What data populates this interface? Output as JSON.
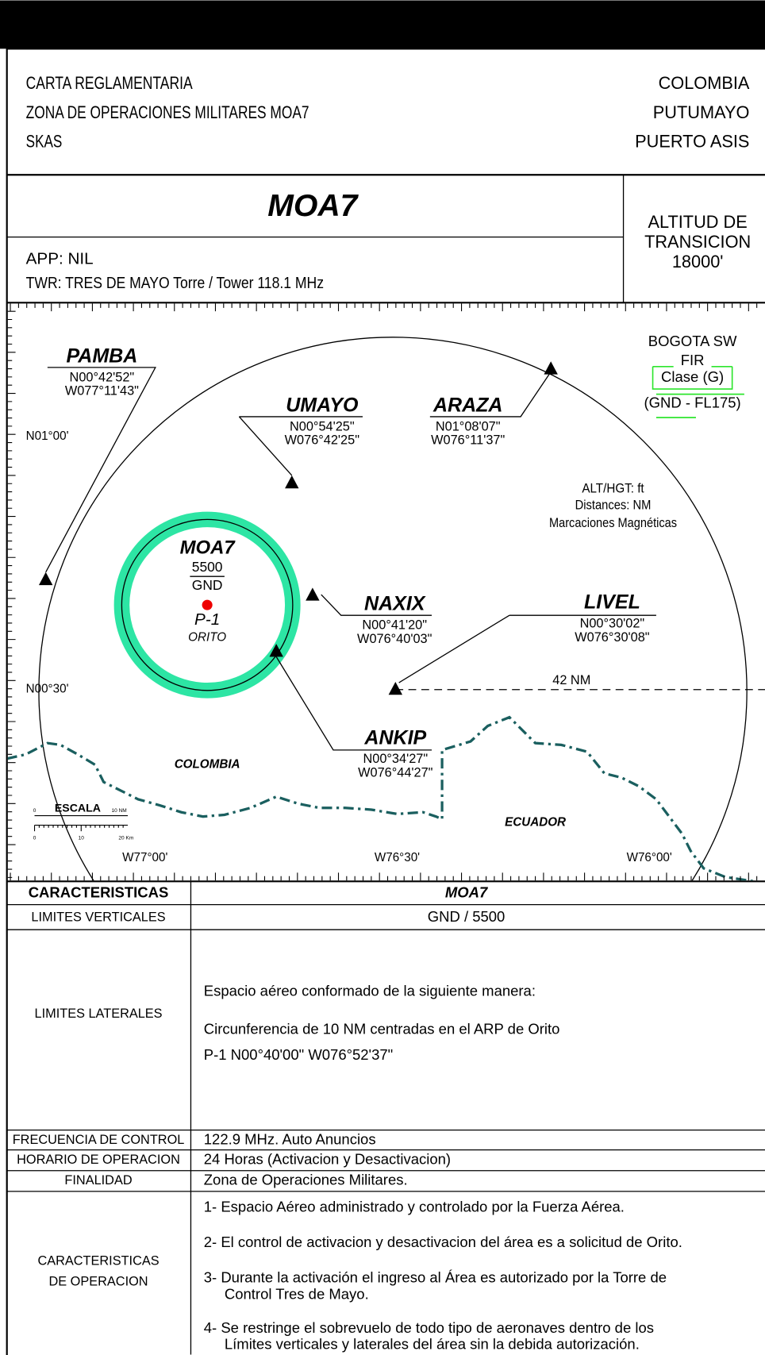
{
  "header": {
    "title": "MOA",
    "left_lines": [
      "CARTA REGLAMENTARIA",
      "ZONA DE OPERACIONES MILITARES MOA7",
      "SKAS"
    ],
    "right_lines": [
      "COLOMBIA",
      "PUTUMAYO",
      "PUERTO ASIS"
    ]
  },
  "zone": {
    "name": "MOA7",
    "app": "APP: NIL",
    "twr": "TWR: TRES DE MAYO Torre / Tower 118.1 MHz",
    "transition": [
      "ALTITUD DE",
      "TRANSICION",
      "18000'"
    ]
  },
  "map": {
    "waypoints": [
      {
        "name": "PAMBA",
        "lat": "N00°42'52\"",
        "lon": "W077°11'43\""
      },
      {
        "name": "UMAYO",
        "lat": "N00°54'25\"",
        "lon": "W076°42'25\""
      },
      {
        "name": "ARAZA",
        "lat": "N01°08'07\"",
        "lon": "W076°11'37\""
      },
      {
        "name": "NAXIX",
        "lat": "N00°41'20\"",
        "lon": "W076°40'03\""
      },
      {
        "name": "LIVEL",
        "lat": "N00°30'02\"",
        "lon": "W076°30'08\""
      },
      {
        "name": "ANKIP",
        "lat": "N00°34'27\"",
        "lon": "W076°44'27\""
      }
    ],
    "lat_labels": [
      "N01°00'",
      "N00°30'"
    ],
    "lon_labels": [
      "W77°00'",
      "W76°30'",
      "W76°00'"
    ],
    "countries": [
      "COLOMBIA",
      "ECUADOR"
    ],
    "airspace": [
      "BOGOTA SW",
      "FIR",
      "Clase (G)",
      "(GND - FL175)"
    ],
    "notes": [
      "ALT/HGT: ft",
      "Distances: NM",
      "Marcaciones Magnéticas"
    ],
    "area": {
      "name": "MOA7",
      "upper": "5500",
      "lower": "GND",
      "id": "P-1",
      "place": "ORITO"
    },
    "radius_label": "42 NM",
    "scale": {
      "title": "ESCALA",
      "nm_start": "0",
      "nm_end": "10 NM",
      "km_start": "0",
      "km_mid": "10",
      "km_end": "20 Km"
    }
  },
  "table": {
    "header": [
      "CARACTERISTICAS",
      "MOA7"
    ],
    "rows": [
      {
        "label": [
          "LIMITES VERTICALES"
        ],
        "lines": [
          "GND / 5500"
        ]
      },
      {
        "label": [
          "LIMITES LATERALES"
        ],
        "lines": [
          "Espacio aéreo conformado de la siguiente manera:",
          "Circunferencia de 10 NM centradas en el ARP de Orito",
          "P-1  N00°40'00\"  W076°52'37\""
        ]
      },
      {
        "label": [
          "FRECUENCIA DE CONTROL"
        ],
        "lines": [
          "122.9 MHz. Auto Anuncios"
        ]
      },
      {
        "label": [
          "HORARIO DE OPERACION"
        ],
        "lines": [
          "24 Horas (Activacion y Desactivacion)"
        ]
      },
      {
        "label": [
          "FINALIDAD"
        ],
        "lines": [
          "Zona de Operaciones Militares."
        ]
      },
      {
        "label": [
          "CARACTERISTICAS",
          "DE OPERACION"
        ],
        "lines": [
          "1- Espacio Aéreo administrado y controlado por la Fuerza Aérea.",
          "2- El control de activacion y desactivacion del área es a solicitud de Orito.",
          "3- Durante la activación el ingreso al Área es autorizado por la Torre de",
          "Control Tres de Mayo.",
          "4- Se restringe el sobrevuelo de todo tipo de aeronaves dentro de los",
          "Límites verticales y laterales del área sin la debida autorización."
        ]
      }
    ]
  }
}
